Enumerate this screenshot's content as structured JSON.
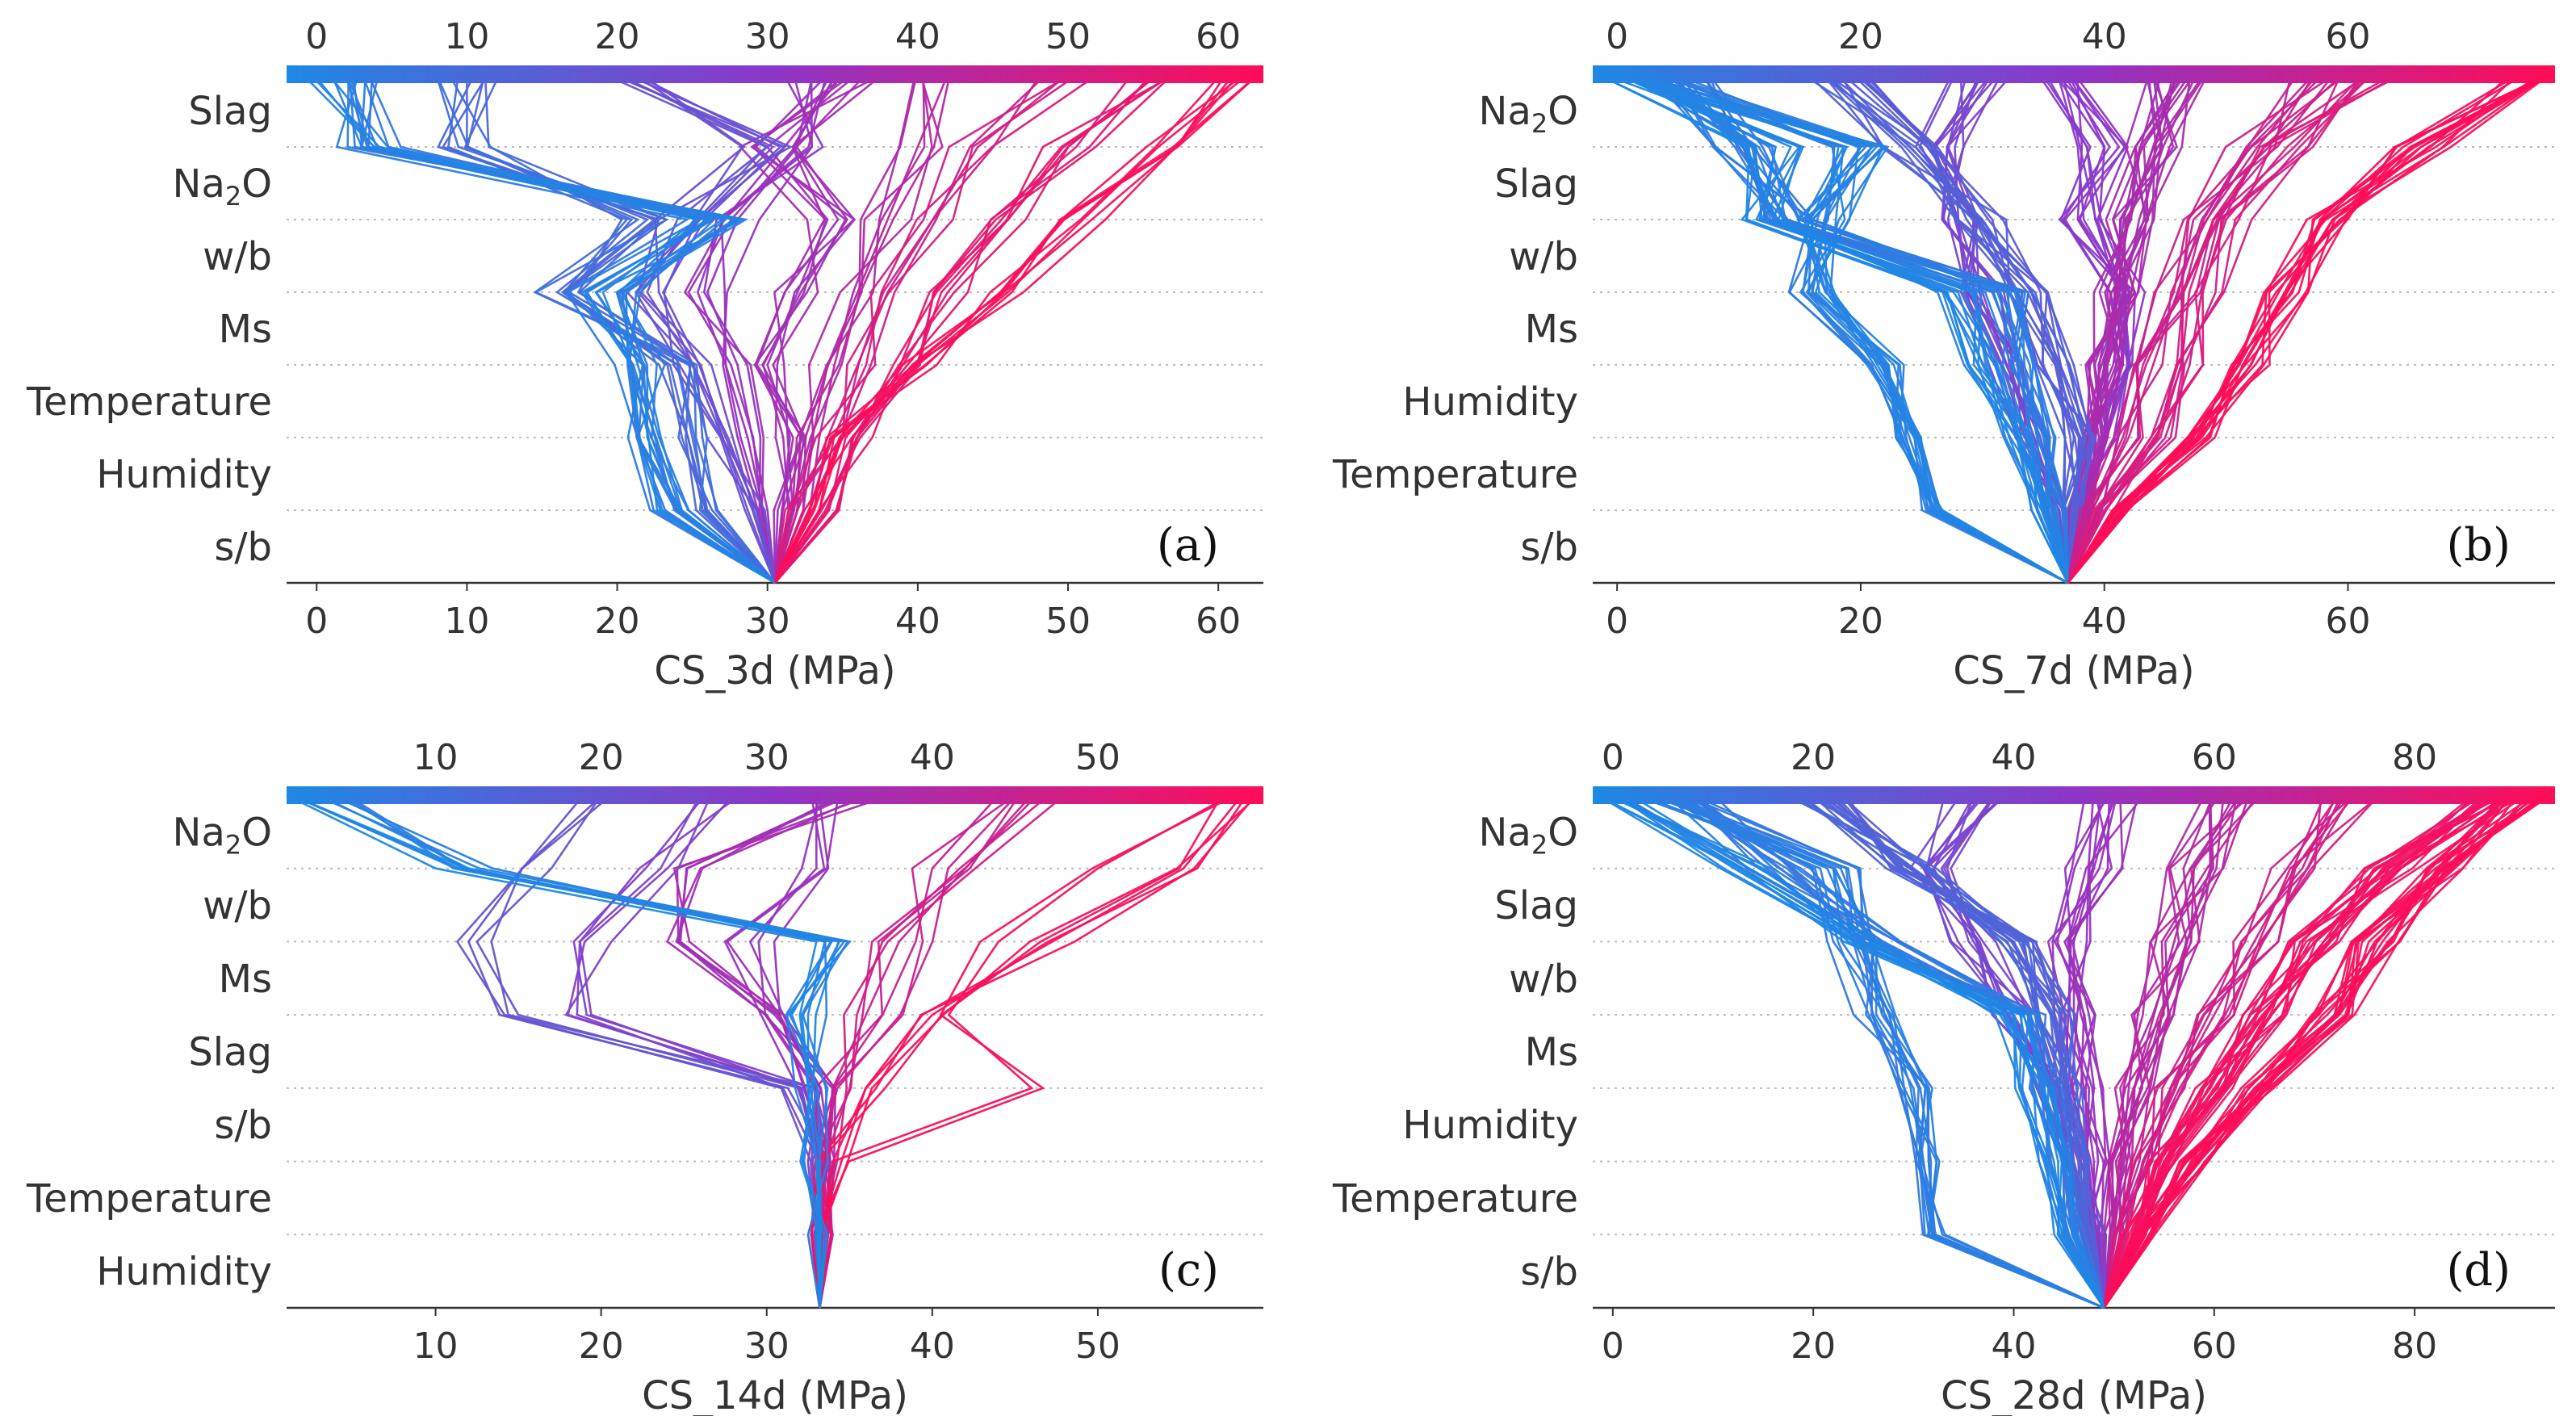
{
  "figure": {
    "colormap": {
      "low": "#1e88e5",
      "mid": "#8e36c8",
      "high": "#ff0d57"
    }
  },
  "chart_data": [
    {
      "type": "line",
      "subtype": "shap-decision-plot",
      "panel_label": "(a)",
      "xlabel": "CS_3d (MPa)",
      "xlim": [
        -2,
        63
      ],
      "ticks": [
        0,
        10,
        20,
        30,
        40,
        50,
        60
      ],
      "tick_labels": [
        "0",
        "10",
        "20",
        "30",
        "40",
        "50",
        "60"
      ],
      "base_value": 30.5,
      "features_top_to_bottom": [
        "Slag",
        "Na2O",
        "w/b",
        "Ms",
        "Temperature",
        "Humidity",
        "s/b"
      ],
      "feature_labels": [
        {
          "base": "Slag",
          "sub": "",
          "rest": ""
        },
        {
          "base": "Na",
          "sub": "2",
          "rest": "O"
        },
        {
          "base": "w/b",
          "sub": "",
          "rest": ""
        },
        {
          "base": "Ms",
          "sub": "",
          "rest": ""
        },
        {
          "base": "Temperature",
          "sub": "",
          "rest": ""
        },
        {
          "base": "Humidity",
          "sub": "",
          "rest": ""
        },
        {
          "base": "s/b",
          "sub": "",
          "rest": ""
        }
      ],
      "line_count": 80,
      "sample_paths_bottom_to_top": [
        [
          30.5,
          23.0,
          21.5,
          21.0,
          18.0,
          26.0,
          3.0,
          1.0
        ],
        [
          30.5,
          24.0,
          22.0,
          22.0,
          20.0,
          27.0,
          4.0,
          2.0
        ],
        [
          30.5,
          26.0,
          25.0,
          24.0,
          16.0,
          22.0,
          10.0,
          10.0
        ],
        [
          30.5,
          29.0,
          27.0,
          25.0,
          22.0,
          24.0,
          30.0,
          20.0
        ],
        [
          30.5,
          30.0,
          29.0,
          28.0,
          26.0,
          28.0,
          32.0,
          33.0
        ],
        [
          30.5,
          31.0,
          31.5,
          30.0,
          32.0,
          34.0,
          30.0,
          36.0
        ],
        [
          30.5,
          32.0,
          33.0,
          34.0,
          36.0,
          38.0,
          40.0,
          42.0
        ],
        [
          30.5,
          34.0,
          36.0,
          39.0,
          42.0,
          46.0,
          50.0,
          56.0
        ],
        [
          30.5,
          33.0,
          35.0,
          40.0,
          46.0,
          51.0,
          56.0,
          62.0
        ],
        [
          30.5,
          32.0,
          34.0,
          36.0,
          38.0,
          41.0,
          44.0,
          50.0
        ]
      ]
    },
    {
      "type": "line",
      "subtype": "shap-decision-plot",
      "panel_label": "(b)",
      "xlabel": "CS_7d (MPa)",
      "xlim": [
        -2,
        77
      ],
      "ticks": [
        0,
        20,
        40,
        60
      ],
      "tick_labels": [
        "0",
        "20",
        "40",
        "60"
      ],
      "base_value": 37.0,
      "features_top_to_bottom": [
        "Na2O",
        "Slag",
        "w/b",
        "Ms",
        "Humidity",
        "Temperature",
        "s/b"
      ],
      "feature_labels": [
        {
          "base": "Na",
          "sub": "2",
          "rest": "O"
        },
        {
          "base": "Slag",
          "sub": "",
          "rest": ""
        },
        {
          "base": "w/b",
          "sub": "",
          "rest": ""
        },
        {
          "base": "Ms",
          "sub": "",
          "rest": ""
        },
        {
          "base": "Humidity",
          "sub": "",
          "rest": ""
        },
        {
          "base": "Temperature",
          "sub": "",
          "rest": ""
        },
        {
          "base": "s/b",
          "sub": "",
          "rest": ""
        }
      ],
      "line_count": 150,
      "sample_paths_bottom_to_top": [
        [
          37.0,
          26.0,
          24.0,
          22.0,
          16.0,
          17.0,
          20.0,
          2.0
        ],
        [
          37.0,
          35.0,
          33.0,
          30.0,
          28.0,
          12.0,
          13.0,
          0.0
        ],
        [
          37.0,
          36.0,
          35.0,
          33.0,
          32.0,
          14.0,
          10.0,
          5.0
        ],
        [
          37.0,
          37.5,
          38.0,
          36.0,
          34.0,
          30.0,
          24.0,
          18.0
        ],
        [
          37.0,
          38.0,
          40.0,
          41.0,
          42.0,
          38.0,
          40.0,
          36.0
        ],
        [
          37.0,
          40.0,
          45.0,
          47.0,
          48.0,
          50.0,
          55.0,
          62.0
        ],
        [
          37.0,
          41.0,
          48.0,
          52.0,
          55.0,
          58.0,
          66.0,
          76.0
        ],
        [
          37.0,
          39.0,
          42.0,
          44.0,
          46.0,
          48.0,
          52.0,
          58.0
        ],
        [
          37.0,
          38.0,
          39.0,
          40.0,
          41.0,
          42.0,
          44.0,
          46.0
        ],
        [
          37.0,
          36.0,
          34.0,
          32.0,
          30.0,
          28.0,
          26.0,
          30.0
        ]
      ]
    },
    {
      "type": "line",
      "subtype": "shap-decision-plot",
      "panel_label": "(c)",
      "xlabel": "CS_14d (MPa)",
      "xlim": [
        1,
        60
      ],
      "ticks": [
        10,
        20,
        30,
        40,
        50
      ],
      "tick_labels": [
        "10",
        "20",
        "30",
        "40",
        "50"
      ],
      "base_value": 33.2,
      "features_top_to_bottom": [
        "Na2O",
        "w/b",
        "Ms",
        "Slag",
        "s/b",
        "Temperature",
        "Humidity"
      ],
      "feature_labels": [
        {
          "base": "Na",
          "sub": "2",
          "rest": "O"
        },
        {
          "base": "w/b",
          "sub": "",
          "rest": ""
        },
        {
          "base": "Ms",
          "sub": "",
          "rest": ""
        },
        {
          "base": "Slag",
          "sub": "",
          "rest": ""
        },
        {
          "base": "s/b",
          "sub": "",
          "rest": ""
        },
        {
          "base": "Temperature",
          "sub": "",
          "rest": ""
        },
        {
          "base": "Humidity",
          "sub": "",
          "rest": ""
        }
      ],
      "line_count": 45,
      "sample_paths_bottom_to_top": [
        [
          33.2,
          33.2,
          33.2,
          32.0,
          15.0,
          12.5,
          17.0,
          20.0
        ],
        [
          33.2,
          33.2,
          33.0,
          32.0,
          18.0,
          19.0,
          24.0,
          28.0
        ],
        [
          33.2,
          33.2,
          33.0,
          32.5,
          32.0,
          33.0,
          10.0,
          1.0
        ],
        [
          33.2,
          33.2,
          33.0,
          32.5,
          32.5,
          33.5,
          12.0,
          3.0
        ],
        [
          33.2,
          33.3,
          33.4,
          33.0,
          30.0,
          24.0,
          26.0,
          36.0
        ],
        [
          33.2,
          33.3,
          33.5,
          34.0,
          36.0,
          38.0,
          42.0,
          46.0
        ],
        [
          33.2,
          33.4,
          34.0,
          46.0,
          41.0,
          44.0,
          50.0,
          58.0
        ],
        [
          33.2,
          33.4,
          34.0,
          36.0,
          40.0,
          47.0,
          56.0,
          59.0
        ],
        [
          33.2,
          33.3,
          33.6,
          34.0,
          37.0,
          39.0,
          40.0,
          44.0
        ],
        [
          33.2,
          33.2,
          33.2,
          33.0,
          31.0,
          29.0,
          33.0,
          33.0
        ]
      ]
    },
    {
      "type": "line",
      "subtype": "shap-decision-plot",
      "panel_label": "(d)",
      "xlabel": "CS_28d (MPa)",
      "xlim": [
        -2,
        94
      ],
      "ticks": [
        0,
        20,
        40,
        60,
        80
      ],
      "tick_labels": [
        "0",
        "20",
        "40",
        "60",
        "80"
      ],
      "base_value": 49.0,
      "features_top_to_bottom": [
        "Na2O",
        "Slag",
        "w/b",
        "Ms",
        "Humidity",
        "Temperature",
        "s/b"
      ],
      "feature_labels": [
        {
          "base": "Na",
          "sub": "2",
          "rest": "O"
        },
        {
          "base": "Slag",
          "sub": "",
          "rest": ""
        },
        {
          "base": "w/b",
          "sub": "",
          "rest": ""
        },
        {
          "base": "Ms",
          "sub": "",
          "rest": ""
        },
        {
          "base": "Humidity",
          "sub": "",
          "rest": ""
        },
        {
          "base": "Temperature",
          "sub": "",
          "rest": ""
        },
        {
          "base": "s/b",
          "sub": "",
          "rest": ""
        }
      ],
      "line_count": 150,
      "sample_paths_bottom_to_top": [
        [
          49.0,
          32.0,
          31.0,
          30.0,
          26.0,
          24.0,
          22.0,
          5.0
        ],
        [
          49.0,
          45.0,
          44.0,
          42.0,
          40.0,
          25.0,
          13.0,
          0.0
        ],
        [
          49.0,
          46.0,
          45.0,
          43.0,
          41.0,
          27.0,
          16.0,
          8.0
        ],
        [
          49.0,
          47.0,
          46.0,
          45.0,
          44.0,
          40.0,
          30.0,
          20.0
        ],
        [
          49.0,
          48.0,
          48.0,
          47.0,
          46.0,
          46.0,
          48.0,
          50.0
        ],
        [
          49.0,
          52.0,
          55.0,
          60.0,
          65.0,
          70.0,
          78.0,
          88.0
        ],
        [
          49.0,
          53.0,
          58.0,
          64.0,
          72.0,
          76.0,
          84.0,
          92.0
        ],
        [
          49.0,
          51.0,
          53.0,
          56.0,
          60.0,
          64.0,
          68.0,
          74.0
        ],
        [
          49.0,
          50.0,
          51.0,
          52.0,
          54.0,
          56.0,
          58.0,
          62.0
        ],
        [
          49.0,
          48.0,
          46.0,
          44.0,
          40.0,
          36.0,
          32.0,
          36.0
        ]
      ]
    }
  ]
}
